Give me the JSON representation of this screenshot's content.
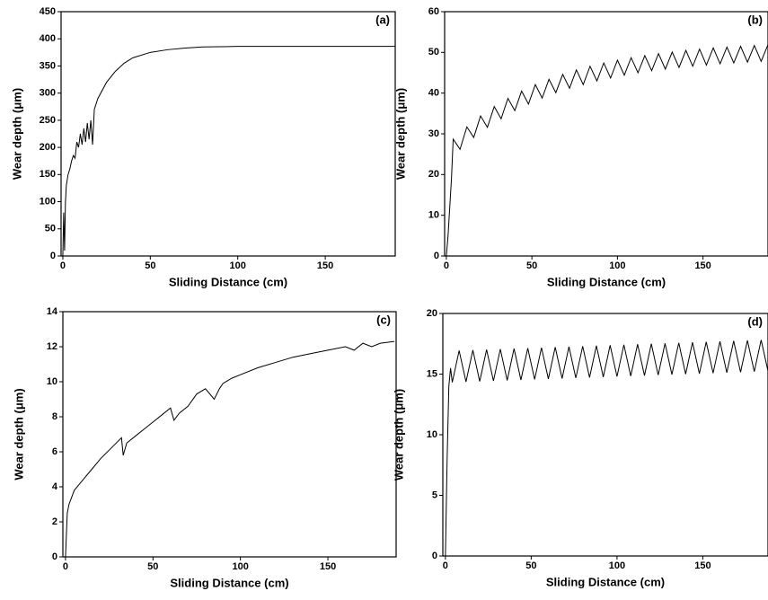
{
  "chart_data": [
    {
      "type": "line",
      "annotation": "(a)",
      "xlabel": "Sliding Distance (cm)",
      "ylabel": "Wear depth (μm)",
      "xlim": [
        -1,
        190
      ],
      "ylim": [
        0,
        450
      ],
      "xticks": [
        0,
        50,
        100,
        150
      ],
      "yticks": [
        0,
        50,
        100,
        150,
        200,
        250,
        300,
        350,
        400,
        450
      ],
      "series": [
        {
          "color": "#000000",
          "x": [
            0,
            0.5,
            1,
            1.5,
            2,
            3,
            4,
            5,
            6,
            7,
            8,
            9,
            10,
            11,
            12,
            13,
            14,
            15,
            16,
            17,
            18,
            20,
            25,
            30,
            35,
            40,
            50,
            60,
            70,
            80,
            100,
            120,
            140,
            160,
            190
          ],
          "values": [
            0,
            80,
            10,
            100,
            130,
            150,
            160,
            175,
            185,
            180,
            210,
            200,
            225,
            205,
            235,
            210,
            245,
            215,
            250,
            205,
            270,
            290,
            320,
            340,
            355,
            365,
            375,
            380,
            383,
            385,
            386,
            386,
            386,
            386,
            386
          ]
        }
      ]
    },
    {
      "type": "line",
      "annotation": "(b)",
      "xlabel": "Sliding Distance (cm)",
      "ylabel": "Wear depth (μm)",
      "xlim": [
        -1,
        188
      ],
      "ylim": [
        0,
        60
      ],
      "xticks": [
        0,
        50,
        100,
        150
      ],
      "yticks": [
        0,
        10,
        20,
        30,
        40,
        50,
        60
      ],
      "series": [
        {
          "color": "#000000",
          "x": [
            0,
            1,
            2,
            3,
            4,
            8,
            12,
            16,
            20,
            24,
            28,
            32,
            36,
            40,
            44,
            48,
            52,
            56,
            60,
            64,
            68,
            72,
            76,
            80,
            84,
            88,
            92,
            96,
            100,
            104,
            108,
            112,
            116,
            120,
            124,
            128,
            132,
            136,
            140,
            144,
            148,
            152,
            156,
            160,
            164,
            168,
            172,
            176,
            180,
            184,
            188
          ],
          "values": [
            0,
            5,
            12,
            19,
            28.7,
            26.2,
            31.7,
            29.1,
            34.4,
            31.6,
            36.7,
            33.7,
            38.7,
            35.7,
            40.5,
            37.3,
            42.1,
            38.8,
            43.4,
            40.1,
            44.6,
            41.2,
            45.7,
            42.1,
            46.6,
            43.0,
            47.4,
            43.7,
            48.1,
            44.4,
            48.7,
            45.0,
            49.2,
            45.5,
            49.7,
            45.9,
            50.1,
            46.3,
            50.5,
            46.6,
            50.8,
            46.9,
            51.1,
            47.2,
            51.3,
            47.4,
            51.5,
            47.6,
            51.7,
            47.8,
            51.9
          ]
        }
      ]
    },
    {
      "type": "line",
      "annotation": "(c)",
      "xlabel": "Sliding Distance (cm)",
      "ylabel": "Wear depth (μm)",
      "xlim": [
        -1.5,
        189
      ],
      "ylim": [
        0,
        14
      ],
      "xticks": [
        0,
        50,
        100,
        150
      ],
      "yticks": [
        0,
        2,
        4,
        6,
        8,
        10,
        12,
        14
      ],
      "series": [
        {
          "color": "#000000",
          "x": [
            0,
            1,
            2,
            5,
            10,
            15,
            20,
            25,
            30,
            32,
            33,
            35,
            40,
            45,
            50,
            55,
            60,
            62,
            65,
            70,
            75,
            80,
            85,
            88,
            90,
            95,
            100,
            110,
            120,
            130,
            140,
            150,
            160,
            165,
            170,
            175,
            180,
            188
          ],
          "values": [
            0,
            2.5,
            3,
            3.8,
            4.4,
            5,
            5.6,
            6.1,
            6.6,
            6.8,
            5.8,
            6.5,
            6.9,
            7.3,
            7.7,
            8.1,
            8.5,
            7.8,
            8.2,
            8.6,
            9.3,
            9.6,
            9.0,
            9.6,
            9.9,
            10.2,
            10.4,
            10.8,
            11.1,
            11.4,
            11.6,
            11.8,
            12.0,
            11.8,
            12.2,
            12.0,
            12.2,
            12.3
          ]
        }
      ]
    },
    {
      "type": "line",
      "annotation": "(d)",
      "xlabel": "Sliding Distance (cm)",
      "ylabel": "Wear depth (μm)",
      "xlim": [
        -1.5,
        188
      ],
      "ylim": [
        0,
        20
      ],
      "xticks": [
        0,
        50,
        100,
        150
      ],
      "yticks": [
        0,
        5,
        10,
        15,
        20
      ],
      "series": [
        {
          "color": "#000000",
          "x": [
            0,
            1,
            2,
            3,
            4,
            8,
            12,
            16,
            20,
            24,
            28,
            32,
            36,
            40,
            44,
            48,
            52,
            56,
            60,
            64,
            68,
            72,
            76,
            80,
            84,
            88,
            92,
            96,
            100,
            104,
            108,
            112,
            116,
            120,
            124,
            128,
            132,
            136,
            140,
            144,
            148,
            152,
            156,
            160,
            164,
            168,
            172,
            176,
            180,
            184,
            188
          ],
          "values": [
            0,
            8,
            14,
            15.5,
            14.32,
            16.94,
            14.36,
            16.98,
            14.4,
            17.02,
            14.44,
            17.06,
            14.48,
            17.1,
            14.52,
            17.14,
            14.56,
            17.18,
            14.6,
            17.22,
            14.64,
            17.26,
            14.68,
            17.3,
            14.72,
            17.34,
            14.76,
            17.38,
            14.8,
            17.42,
            14.84,
            17.46,
            14.88,
            17.5,
            14.92,
            17.54,
            14.96,
            17.58,
            15.0,
            17.62,
            15.04,
            17.66,
            15.08,
            17.7,
            15.12,
            17.74,
            15.16,
            17.78,
            15.2,
            17.82,
            15.24
          ]
        }
      ]
    }
  ]
}
